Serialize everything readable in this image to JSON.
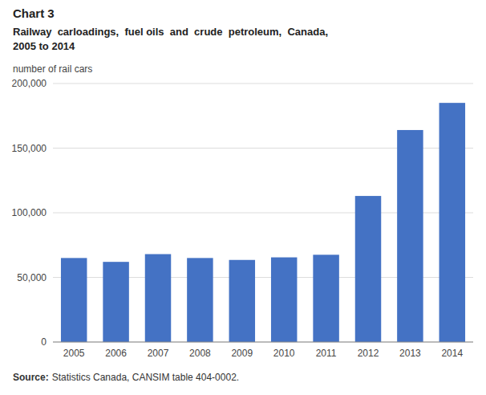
{
  "chart_data": {
    "type": "bar",
    "title": "Chart 3",
    "subtitle": [
      "Railway  carloadings,  fuel oils  and  crude  petroleum,  Canada,",
      "2005 to 2014"
    ],
    "y_label": "number of rail cars",
    "annotations": [
      "Source:",
      "Statistics Canada, CANSIM table 404-0002."
    ],
    "categories": [
      "2005",
      "2006",
      "2007",
      "2008",
      "2009",
      "2010",
      "2011",
      "2012",
      "2013",
      "2014"
    ],
    "values": [
      65000,
      62000,
      68000,
      65000,
      63500,
      65500,
      67500,
      113000,
      164000,
      185000
    ],
    "color": "#4472C4",
    "ylim": [
      0,
      200000
    ],
    "yticks": [
      0,
      {
        "value": 50000,
        "label": "50,000"
      },
      {
        "value": 100000,
        "label": "100,000"
      },
      {
        "value": 150000,
        "label": "150,000"
      },
      {
        "value": 200000,
        "label": "200,000"
      }
    ],
    "grid": true
  }
}
